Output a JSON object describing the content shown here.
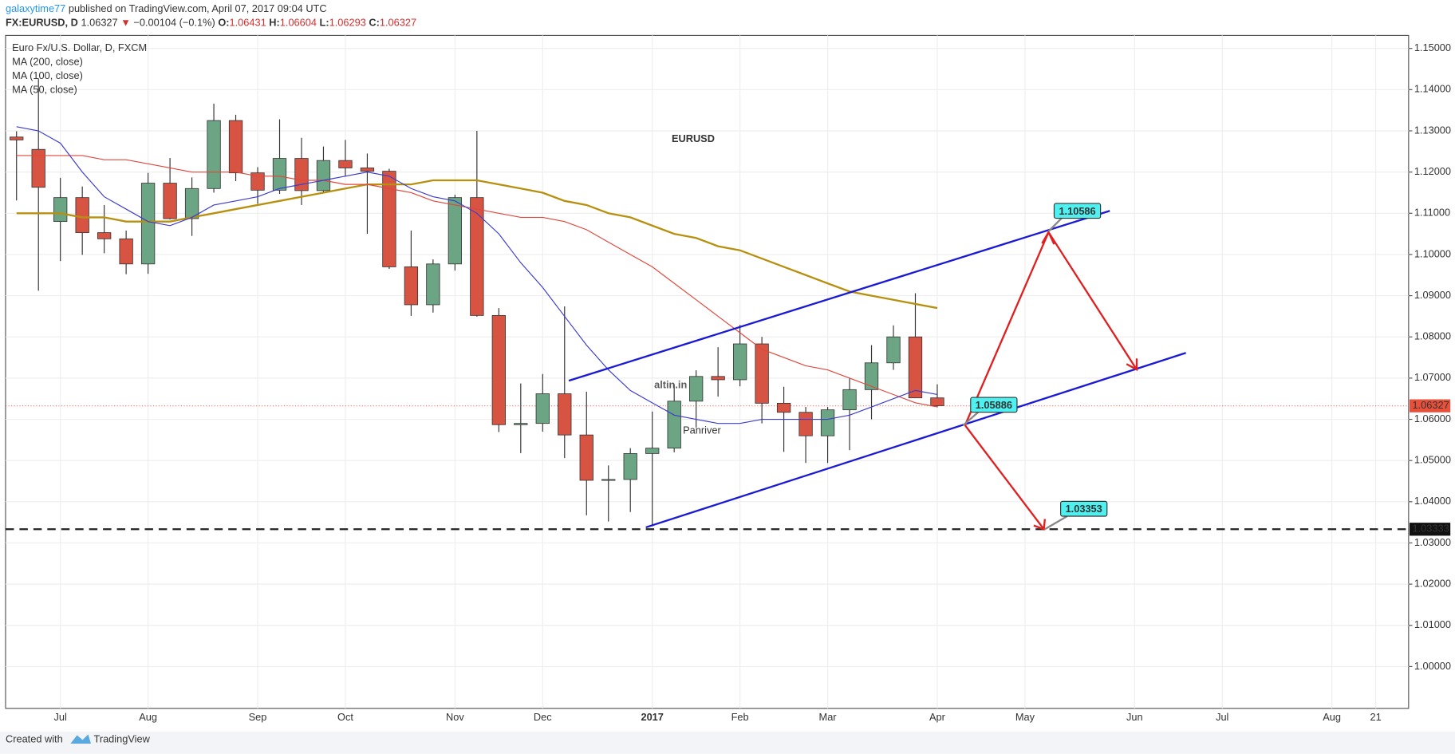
{
  "header": {
    "author": "galaxytime77",
    "published": "published on TradingView.com, April 07, 2017 09:04 UTC",
    "symbol": "FX:EURUSD, D",
    "last": "1.06327",
    "arrow": "▼",
    "change": "−0.00104 (−0.1%)",
    "ohlc": [
      {
        "key": "O:",
        "value": "1.06431"
      },
      {
        "key": "H:",
        "value": "1.06604"
      },
      {
        "key": "L:",
        "value": "1.06293"
      },
      {
        "key": "C:",
        "value": "1.06327"
      }
    ]
  },
  "footer": {
    "created": "Created with",
    "brand": "TradingView"
  },
  "watermark": [
    "altin.in",
    "Panriver"
  ],
  "callouts": [
    "1.10586",
    "1.05886",
    "1.03353"
  ],
  "chart_data": {
    "type": "candlestick",
    "title": "EURUSD",
    "instrument": "Euro Fx/U.S. Dollar, D, FXCM",
    "up_color": "#6ba583",
    "down_color": "#d75442",
    "categories": [
      null,
      null,
      "Jul",
      null,
      null,
      null,
      "Aug",
      null,
      null,
      null,
      null,
      "Sep",
      null,
      null,
      null,
      "Oct",
      null,
      null,
      null,
      null,
      "Nov",
      null,
      null,
      null,
      "Dec",
      null,
      null,
      null,
      null,
      "2017",
      null,
      null,
      null,
      "Feb",
      null,
      null,
      null,
      "Mar",
      null,
      null,
      null,
      null,
      "Apr",
      null,
      null,
      null,
      "May",
      null,
      null,
      null,
      null,
      "Jun",
      null,
      null,
      null,
      "Jul",
      null,
      null,
      null,
      null,
      "Aug",
      null,
      "21",
      null
    ],
    "open": [
      1.1285,
      1.1255,
      1.108,
      1.1138,
      1.1053,
      1.1038,
      1.0977,
      1.1173,
      1.1087,
      1.116,
      1.1325,
      1.1198,
      1.1156,
      1.1233,
      1.1155,
      1.1228,
      1.121,
      1.1202,
      1.097,
      1.0878,
      1.0977,
      1.1138,
      1.0852,
      1.0587,
      1.059,
      1.0662,
      1.0562,
      1.0452,
      1.0454,
      1.0517,
      1.053,
      1.0644,
      1.0704,
      1.0696,
      1.0783,
      1.0639,
      1.0617,
      1.056,
      1.0623,
      1.0672,
      1.0737,
      1.08,
      1.0652,
      null,
      null,
      null,
      null,
      null,
      null,
      null,
      null,
      null,
      null,
      null,
      null,
      null,
      null,
      null,
      null,
      null,
      null,
      null,
      null,
      null
    ],
    "high": [
      1.1299,
      1.1427,
      1.1186,
      1.1165,
      1.112,
      1.1058,
      1.1198,
      1.1234,
      1.1187,
      1.1366,
      1.1339,
      1.1212,
      1.1328,
      1.1283,
      1.1262,
      1.1278,
      1.1245,
      1.1208,
      1.1058,
      1.0988,
      1.1145,
      1.13,
      1.087,
      1.0687,
      1.071,
      1.0874,
      1.0667,
      1.0488,
      1.053,
      1.0619,
      1.0685,
      1.0719,
      1.0775,
      1.0829,
      1.08,
      1.0679,
      1.063,
      1.063,
      1.07,
      1.078,
      1.0828,
      1.0906,
      1.0685,
      null,
      null,
      null,
      null,
      null,
      null,
      null,
      null,
      null,
      null,
      null,
      null,
      null,
      null,
      null,
      null,
      null,
      null,
      null,
      null,
      null
    ],
    "low": [
      1.1131,
      1.0912,
      1.0984,
      1.0999,
      1.1003,
      1.0952,
      1.0953,
      1.1085,
      1.1045,
      1.115,
      1.1178,
      1.1123,
      1.1147,
      1.112,
      1.1149,
      1.1189,
      1.105,
      1.0965,
      1.0851,
      1.0859,
      1.0961,
      1.0849,
      1.0569,
      1.0518,
      1.057,
      1.0506,
      1.0367,
      1.0352,
      1.0375,
      1.034,
      1.052,
      1.058,
      1.0655,
      1.068,
      1.059,
      1.0521,
      1.0494,
      1.0494,
      1.0525,
      1.06,
      1.072,
      1.0652,
      1.0629,
      null,
      null,
      null,
      null,
      null,
      null,
      null,
      null,
      null,
      null,
      null,
      null,
      null,
      null,
      null,
      null,
      null,
      null,
      null,
      null,
      null
    ],
    "close": [
      1.1278,
      1.1163,
      1.1138,
      1.1053,
      1.1038,
      1.0977,
      1.1173,
      1.1087,
      1.116,
      1.1325,
      1.1198,
      1.1156,
      1.1233,
      1.1155,
      1.1228,
      1.121,
      1.1202,
      1.097,
      1.0878,
      1.0977,
      1.1138,
      1.0852,
      1.0587,
      1.059,
      1.0662,
      1.0562,
      1.0452,
      1.0454,
      1.0517,
      1.053,
      1.0644,
      1.0704,
      1.0696,
      1.0783,
      1.0639,
      1.0617,
      1.056,
      1.0623,
      1.0672,
      1.0737,
      1.08,
      1.0652,
      1.0633,
      null,
      null,
      null,
      null,
      null,
      null,
      null,
      null,
      null,
      null,
      null,
      null,
      null,
      null,
      null,
      null,
      null,
      null,
      null,
      null,
      null
    ],
    "series": [
      {
        "name": "MA (200, close)",
        "color": "#b8900f",
        "values": [
          1.11,
          1.11,
          1.11,
          1.109,
          1.109,
          1.108,
          1.108,
          1.108,
          1.109,
          1.11,
          1.111,
          1.112,
          1.113,
          1.114,
          1.115,
          1.116,
          1.117,
          1.117,
          1.117,
          1.118,
          1.118,
          1.118,
          1.117,
          1.116,
          1.115,
          1.113,
          1.112,
          1.11,
          1.109,
          1.107,
          1.105,
          1.104,
          1.102,
          1.101,
          1.099,
          1.097,
          1.095,
          1.093,
          1.091,
          1.09,
          1.089,
          1.088,
          1.087,
          null,
          null,
          null,
          null,
          null,
          null,
          null,
          null,
          null,
          null,
          null,
          null,
          null,
          null,
          null,
          null,
          null,
          null,
          null,
          null,
          null
        ]
      },
      {
        "name": "MA (100, close)",
        "color": "#e0473c",
        "values": [
          1.124,
          1.124,
          1.124,
          1.124,
          1.123,
          1.123,
          1.122,
          1.121,
          1.12,
          1.12,
          1.12,
          1.119,
          1.119,
          1.118,
          1.118,
          1.117,
          1.117,
          1.116,
          1.115,
          1.113,
          1.112,
          1.111,
          1.11,
          1.109,
          1.109,
          1.108,
          1.106,
          1.103,
          1.1,
          1.097,
          1.093,
          1.089,
          1.085,
          1.081,
          1.077,
          1.075,
          1.073,
          1.072,
          1.07,
          1.068,
          1.066,
          1.064,
          1.063,
          null,
          null,
          null,
          null,
          null,
          null,
          null,
          null,
          null,
          null,
          null,
          null,
          null,
          null,
          null,
          null,
          null,
          null,
          null,
          null,
          null
        ]
      },
      {
        "name": "MA (50, close)",
        "color": "#3c3cd0",
        "values": [
          1.131,
          1.13,
          1.127,
          1.12,
          1.114,
          1.111,
          1.108,
          1.107,
          1.109,
          1.112,
          1.113,
          1.114,
          1.116,
          1.117,
          1.118,
          1.119,
          1.12,
          1.119,
          1.116,
          1.114,
          1.113,
          1.11,
          1.105,
          1.098,
          1.092,
          1.085,
          1.078,
          1.072,
          1.067,
          1.064,
          1.061,
          1.06,
          1.059,
          1.059,
          1.06,
          1.06,
          1.06,
          1.06,
          1.061,
          1.063,
          1.065,
          1.067,
          1.066,
          null,
          null,
          null,
          null,
          null,
          null,
          null,
          null,
          null,
          null,
          null,
          null,
          null,
          null,
          null,
          null,
          null,
          null,
          null,
          null,
          null
        ]
      }
    ],
    "ylim": [
      0.98986,
      1.15315
    ],
    "yticks": [
      {
        "value": 1.0,
        "label": "1.00000"
      },
      {
        "value": 1.01,
        "label": "1.01000"
      },
      {
        "value": 1.02,
        "label": "1.02000"
      },
      {
        "value": 1.03,
        "label": "1.03000"
      },
      {
        "value": 1.04,
        "label": "1.04000"
      },
      {
        "value": 1.05,
        "label": "1.05000"
      },
      {
        "value": 1.06,
        "label": "1.06000"
      },
      {
        "value": 1.07,
        "label": "1.07000"
      },
      {
        "value": 1.08,
        "label": "1.08000"
      },
      {
        "value": 1.09,
        "label": "1.09000"
      },
      {
        "value": 1.1,
        "label": "1.10000"
      },
      {
        "value": 1.11,
        "label": "1.11000"
      },
      {
        "value": 1.12,
        "label": "1.12000"
      },
      {
        "value": 1.13,
        "label": "1.13000"
      },
      {
        "value": 1.14,
        "label": "1.14000"
      },
      {
        "value": 1.15,
        "label": "1.15000"
      }
    ],
    "grid": true,
    "price_labels": [
      {
        "value": 1.06327,
        "label": "1.06327",
        "color": "#e8503a"
      },
      {
        "value": 1.03333,
        "label": "1.03333",
        "color": "#111111"
      }
    ]
  }
}
